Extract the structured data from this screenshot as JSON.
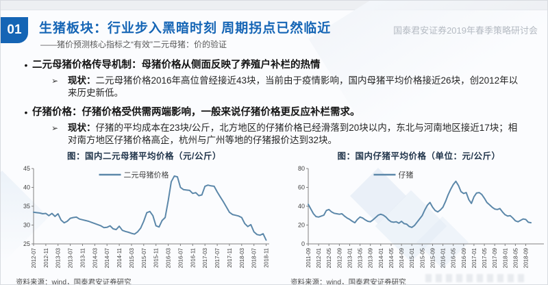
{
  "theme": {
    "accent_blue": "#1565b5",
    "line_color": "#5b87a9"
  },
  "markers": {
    "dot": "•",
    "arrow": "➢"
  },
  "header": {
    "page_number": "01",
    "title": "生猪板块：行业步入黑暗时刻 周期拐点已然临近",
    "subtitle": "——猪价预测核心指标之“有效”二元母猪：价的验证",
    "conference": "国泰君安证券2019年春季策略研讨会"
  },
  "bullets": [
    {
      "title": "二元母猪价格传导机制：母猪价格从侧面反映了养殖户补栏的热情",
      "sub_label": "现状：",
      "sub_text": "二元母猪价格2016年高位曾经接近43块，当前由于疫情影响，国内母猪平均价格接近26块，创2012年以来历史新低。"
    },
    {
      "title": "仔猪价格：仔猪价格受供需两端影响，一般来说仔猪价格更反应补栏需求。",
      "sub_label": "现状：",
      "sub_text": "仔猪的平均成本在23块/公斤，北方地区的仔猪价格已经滑落到20块以内，东北与河南地区接近17块；相对南方地区仔猪价格高企，杭州与广州等地的仔猪报价达到32块。"
    }
  ],
  "chart_data": [
    {
      "type": "line",
      "title": "图：国内二元母猪平均价格（元/公斤）",
      "legend": [
        "二元母猪价格"
      ],
      "line_color": "#5b87a9",
      "ylim": [
        25,
        45
      ],
      "yticks": [
        25,
        30,
        35,
        40,
        45
      ],
      "grid": false,
      "legend_position": "top-center",
      "x_start": "2012-07",
      "x_interval": "monthly",
      "x_slots": 78,
      "xtick_every": 4,
      "xtick_labels": [
        "2012-07",
        "2012-11",
        "2013-03",
        "2013-07",
        "2013-11",
        "2014-03",
        "2014-07",
        "2014-11",
        "2015-03",
        "2015-07",
        "2015-11",
        "2016-03",
        "2016-07",
        "2016-11",
        "2017-03",
        "2017-07",
        "2017-11",
        "2018-03",
        "2018-07",
        "2018-11"
      ],
      "values": [
        33.4,
        33.3,
        33.2,
        33.0,
        33.1,
        32.5,
        33.1,
        32.3,
        33.0,
        31.3,
        30.6,
        31.0,
        31.8,
        32.0,
        32.1,
        31.6,
        31.4,
        31.2,
        31.0,
        30.7,
        30.4,
        30.1,
        29.8,
        29.3,
        29.4,
        29.8,
        29.0,
        28.8,
        29.7,
        28.6,
        28.3,
        28.1,
        27.8,
        27.6,
        28.2,
        29.2,
        31.0,
        33.3,
        33.6,
        32.5,
        29.8,
        29.5,
        31.2,
        32.0,
        36.5,
        41.5,
        43.0,
        42.8,
        40.0,
        39.4,
        39.3,
        39.2,
        38.4,
        38.6,
        37.8,
        38.0,
        40.3,
        40.6,
        40.4,
        40.3,
        38.8,
        37.5,
        36.2,
        34.8,
        33.4,
        32.8,
        32.6,
        32.4,
        32.0,
        30.4,
        29.6,
        30.1,
        28.2,
        27.5,
        27.3,
        27.7,
        26.0
      ],
      "source": "资料来源：wind，国泰君安证券研究"
    },
    {
      "type": "line",
      "title": "图：国内仔猪平均价格（单位：元/公斤）",
      "legend": [
        "仔猪"
      ],
      "line_color": "#5b87a9",
      "ylim": [
        0,
        80
      ],
      "yticks": [
        0,
        20,
        40,
        60,
        80
      ],
      "grid": false,
      "legend_position": "top-center",
      "x_start": "2011-09",
      "x_interval": "monthly",
      "x_slots": 92,
      "xtick_every": 4,
      "xtick_labels": [
        "2011-09",
        "2012-01",
        "2012-05",
        "2012-09",
        "2013-01",
        "2013-05",
        "2013-09",
        "2014-01",
        "2014-05",
        "2014-09",
        "2015-01",
        "2015-05",
        "2015-09",
        "2016-01",
        "2016-05",
        "2016-09",
        "2017-01",
        "2017-05",
        "2017-09",
        "2018-01",
        "2018-05",
        "2018-09"
      ],
      "values": [
        42,
        37,
        32,
        29,
        28.5,
        29.5,
        30.5,
        35.5,
        36.5,
        34,
        32.5,
        32,
        31.5,
        32,
        29.5,
        27.5,
        26,
        24,
        22.5,
        26,
        28.5,
        27.5,
        25.5,
        24,
        23.5,
        25.5,
        28,
        30.5,
        31.5,
        30.5,
        28.5,
        25.5,
        23.5,
        23,
        23.5,
        22,
        24,
        21.5,
        21,
        18.5,
        17.5,
        19.5,
        23,
        26.5,
        30,
        36,
        41,
        44,
        39,
        35.5,
        34,
        36,
        39,
        45,
        52,
        58,
        63,
        66.5,
        62,
        55.5,
        53.5,
        54.5,
        47,
        43,
        50,
        54,
        54.5,
        52.5,
        48.5,
        44,
        41.5,
        39,
        37,
        36.5,
        37.5,
        34,
        31,
        29.5,
        30,
        27.5,
        24.5,
        23.5,
        25,
        26.5,
        26,
        23,
        22.5
      ],
      "source": "资料来源：wind，国泰君安证券研究"
    }
  ]
}
